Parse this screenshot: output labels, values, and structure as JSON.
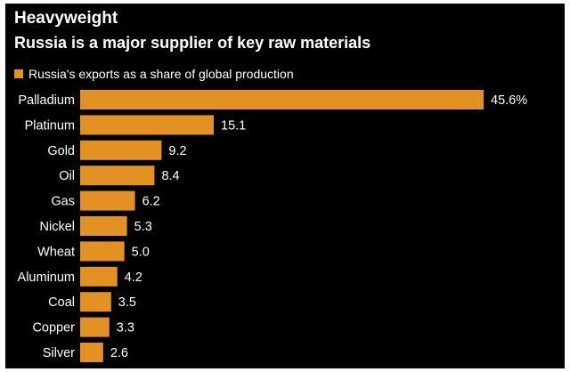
{
  "header": {
    "title": "Heavyweight",
    "subtitle": "Russia is a major supplier of key raw materials"
  },
  "colors": {
    "bar": "#e39123",
    "background": "#000000",
    "text": "#ffffff"
  },
  "chart_data": {
    "type": "bar",
    "orientation": "horizontal",
    "title": "Heavyweight",
    "subtitle": "Russia is a major supplier of key raw materials",
    "legend": [
      "Russia's exports as a share of global production"
    ],
    "legend_position": "top-left",
    "grid": false,
    "xlim": [
      0,
      45.6
    ],
    "categories": [
      "Palladium",
      "Platinum",
      "Gold",
      "Oil",
      "Gas",
      "Nickel",
      "Wheat",
      "Aluminum",
      "Coal",
      "Copper",
      "Silver"
    ],
    "values": [
      45.6,
      15.1,
      9.2,
      8.4,
      6.2,
      5.3,
      5.0,
      4.2,
      3.5,
      3.3,
      2.6
    ],
    "value_labels": [
      "45.6%",
      "15.1",
      "9.2",
      "8.4",
      "6.2",
      "5.3",
      "5.0",
      "4.2",
      "3.5",
      "3.3",
      "2.6"
    ],
    "series": [
      {
        "name": "Russia's exports as a share of global production",
        "values": [
          45.6,
          15.1,
          9.2,
          8.4,
          6.2,
          5.3,
          5.0,
          4.2,
          3.5,
          3.3,
          2.6
        ]
      }
    ]
  }
}
